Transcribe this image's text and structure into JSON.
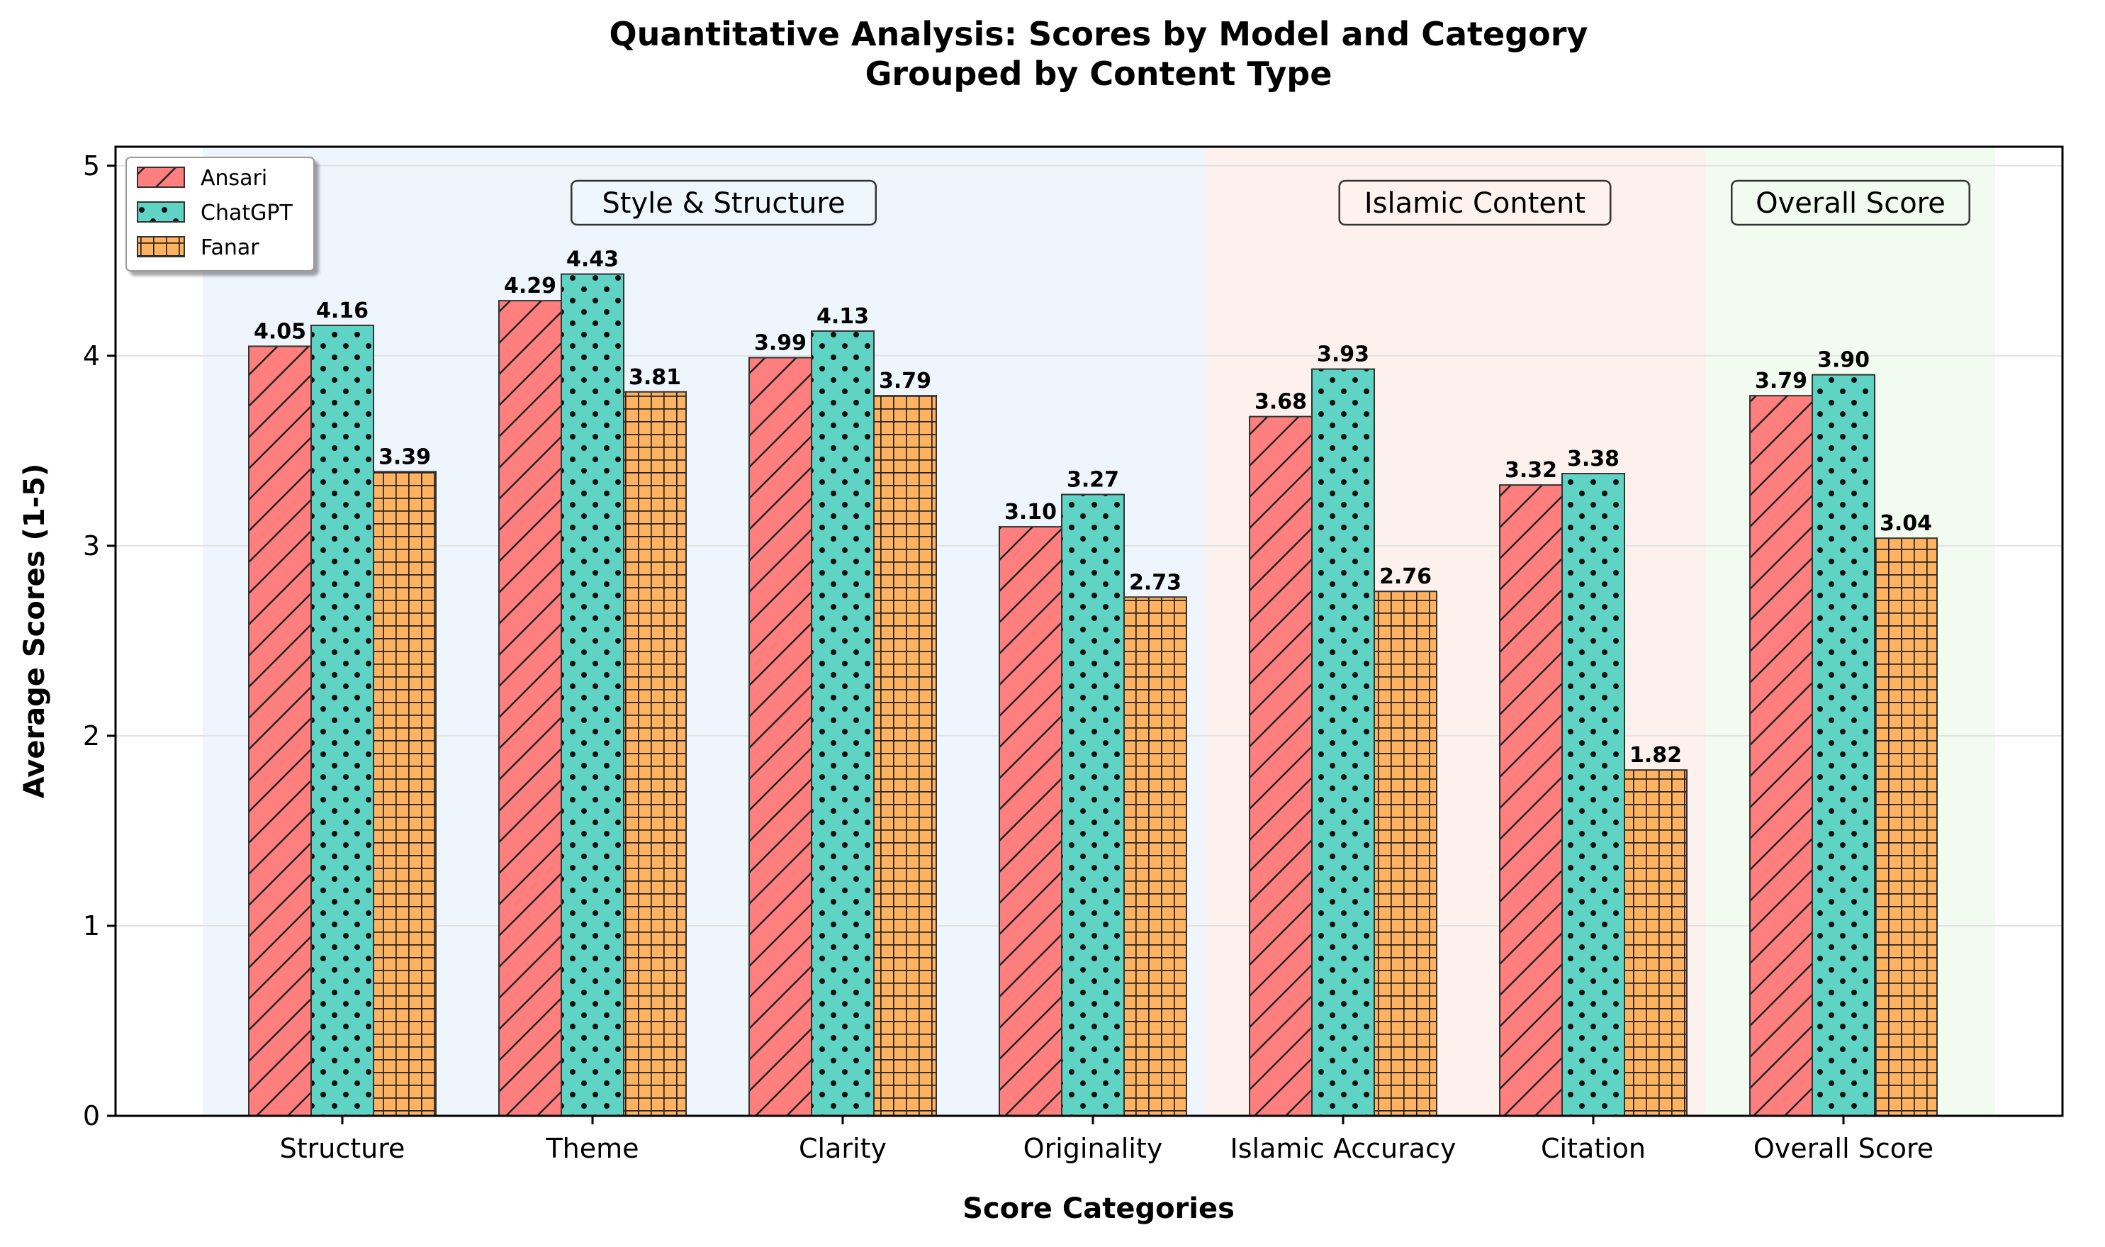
{
  "chart_data": {
    "type": "bar",
    "title": "Quantitative Analysis: Scores by Model and Category",
    "subtitle": "Grouped by Content Type",
    "xlabel": "Score Categories",
    "ylabel": "Average Scores (1-5)",
    "ylim": [
      0,
      5.1
    ],
    "yticks": [
      0,
      1,
      2,
      3,
      4,
      5
    ],
    "grid": true,
    "legend_position": "top-left",
    "categories": [
      "Structure",
      "Theme",
      "Clarity",
      "Originality",
      "Islamic Accuracy",
      "Citation",
      "Overall Score"
    ],
    "series": [
      {
        "name": "Ansari",
        "color": "#ff7f7f",
        "pattern": "diagonal-hatch",
        "values": [
          4.05,
          4.29,
          3.99,
          3.1,
          3.68,
          3.32,
          3.79
        ],
        "labels": [
          "4.05",
          "4.29",
          "3.99",
          "3.10",
          "3.68",
          "3.32",
          "3.79"
        ]
      },
      {
        "name": "ChatGPT",
        "color": "#5fd4c4",
        "pattern": "dots",
        "values": [
          4.16,
          4.43,
          4.13,
          3.27,
          3.93,
          3.38,
          3.9
        ],
        "labels": [
          "4.16",
          "4.43",
          "4.13",
          "3.27",
          "3.93",
          "3.38",
          "3.90"
        ]
      },
      {
        "name": "Fanar",
        "color": "#ffb360",
        "pattern": "grid-hatch",
        "values": [
          3.39,
          3.81,
          3.79,
          2.73,
          2.76,
          1.82,
          3.04
        ],
        "labels": [
          "3.39",
          "3.81",
          "3.79",
          "2.73",
          "2.76",
          "1.82",
          "3.04"
        ]
      }
    ],
    "groups": [
      {
        "label": "Style & Structure",
        "categories": [
          "Structure",
          "Theme",
          "Clarity",
          "Originality"
        ],
        "color": "#eef5fd"
      },
      {
        "label": "Islamic Content",
        "categories": [
          "Islamic Accuracy",
          "Citation"
        ],
        "color": "#fdf1ee"
      },
      {
        "label": "Overall Score",
        "categories": [
          "Overall Score"
        ],
        "color": "#f1fbef"
      }
    ]
  }
}
